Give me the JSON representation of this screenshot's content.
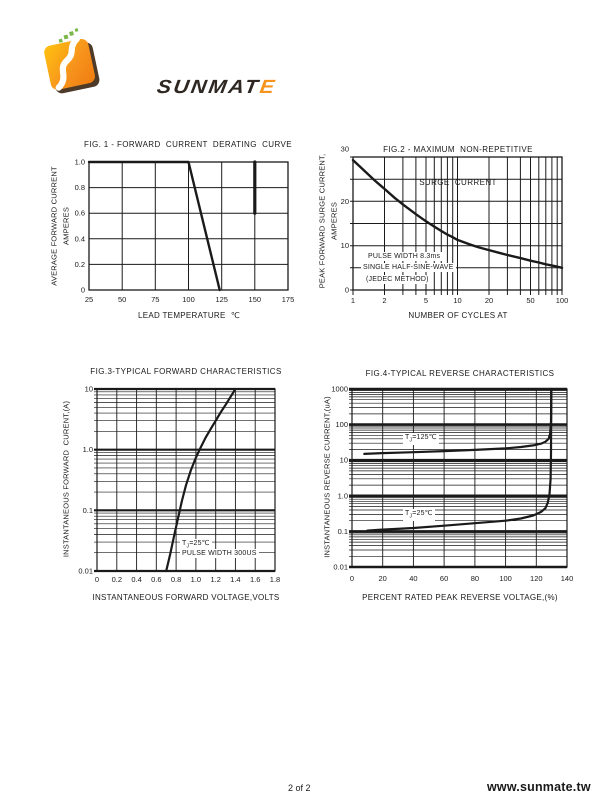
{
  "page": {
    "footer_page_label": "2 of 2",
    "footer_site": "www.sunmate.tw"
  },
  "logo": {
    "brand_main": "SUNMAT",
    "brand_accent": "E",
    "dark": "#2e2722",
    "orange": "#F7941D",
    "orange_light": "#FFC20E",
    "green": "#7AB648"
  },
  "chart_data": [
    {
      "id": "fig1",
      "type": "line",
      "title": "FIG. 1 - FORWARD  CURRENT  DERATING  CURVE",
      "xlabel": "LEAD TEMPERATURE  ℃",
      "ylabel_lines": [
        "AVERAGE FORWARD CURRENT",
        "AMPERES"
      ],
      "x_scale": "linear",
      "y_scale": "linear",
      "xlim": [
        25,
        175
      ],
      "ylim": [
        0,
        1.0
      ],
      "x_grid": [
        25,
        50,
        75,
        100,
        125,
        150,
        175
      ],
      "y_grid": [
        0,
        0.2,
        0.4,
        0.6,
        0.8,
        1.0
      ],
      "x_ticks": [
        {
          "v": 25,
          "label": "25"
        },
        {
          "v": 50,
          "label": "50"
        },
        {
          "v": 75,
          "label": "75"
        },
        {
          "v": 100,
          "label": "100"
        },
        {
          "v": 125,
          "label": "125"
        },
        {
          "v": 150,
          "label": "150"
        },
        {
          "v": 175,
          "label": "175"
        }
      ],
      "y_ticks": [
        {
          "v": 1.0,
          "label": "1.0"
        },
        {
          "v": 0.8,
          "label": "0.8"
        },
        {
          "v": 0.6,
          "label": "0.6"
        },
        {
          "v": 0.4,
          "label": "0.4"
        },
        {
          "v": 0.2,
          "label": "0.2"
        },
        {
          "v": 0,
          "label": "0"
        }
      ],
      "series": [
        {
          "name": "derating-curve",
          "points": [
            [
              25,
              1.0
            ],
            [
              100,
              1.0
            ],
            [
              123.5,
              0
            ]
          ]
        },
        {
          "name": "edge-artifact-line",
          "points": [
            [
              150,
              1.0
            ],
            [
              150,
              0.6
            ]
          ],
          "width": 3.2
        }
      ],
      "annotations": []
    },
    {
      "id": "fig2",
      "type": "line",
      "title_lines": [
        "FIG.2 - MAXIMUM  NON-REPETITIVE",
        "SURGE  CURRENT"
      ],
      "xlabel": "NUMBER OF CYCLES AT",
      "ylabel_lines": [
        "PEAK FORWARD SURGE CURRENT,",
        "AMPERES"
      ],
      "x_scale": "log",
      "y_scale": "linear",
      "xlim": [
        1,
        100
      ],
      "ylim": [
        0,
        30
      ],
      "x_grid": [
        1,
        2,
        5,
        10,
        20,
        50,
        100
      ],
      "y_grid": [
        0,
        5,
        10,
        15,
        20,
        25,
        30
      ],
      "x_ticks": [
        {
          "v": 1,
          "label": "1"
        },
        {
          "v": 2,
          "label": "2"
        },
        {
          "v": 5,
          "label": "5"
        },
        {
          "v": 10,
          "label": "10"
        },
        {
          "v": 20,
          "label": "20"
        },
        {
          "v": 50,
          "label": "50"
        },
        {
          "v": 100,
          "label": "100"
        }
      ],
      "y_ticks": [
        {
          "v": 30,
          "label": "30",
          "dy": -8
        },
        {
          "v": 20,
          "label": "20"
        },
        {
          "v": 10,
          "label": "10"
        },
        {
          "v": 0,
          "label": "0"
        }
      ],
      "series": [
        {
          "name": "surge-current-curve",
          "points": [
            [
              1,
              29.3
            ],
            [
              1.3,
              26.8
            ],
            [
              1.6,
              24.8
            ],
            [
              2,
              22.8
            ],
            [
              2.5,
              20.8
            ],
            [
              3,
              19.3
            ],
            [
              4,
              17.1
            ],
            [
              5,
              15.5
            ],
            [
              6,
              14.3
            ],
            [
              7,
              13.3
            ],
            [
              8,
              12.5
            ],
            [
              9,
              11.9
            ],
            [
              10,
              11.3
            ],
            [
              13,
              10.3
            ],
            [
              16,
              9.6
            ],
            [
              20,
              9.0
            ],
            [
              25,
              8.4
            ],
            [
              30,
              7.9
            ],
            [
              40,
              7.2
            ],
            [
              50,
              6.6
            ],
            [
              60,
              6.2
            ],
            [
              70,
              5.8
            ],
            [
              85,
              5.4
            ],
            [
              100,
              5.0
            ]
          ]
        }
      ],
      "annotations": [
        {
          "text": "PULSE WIDTH 8.3ms"
        },
        {
          "text": "SINGLE HALF-SINE-WAVE"
        },
        {
          "text": "(JEDEC METHOD)"
        }
      ]
    },
    {
      "id": "fig3",
      "type": "line",
      "title": "FIG.3-TYPICAL FORWARD CHARACTERISTICS",
      "xlabel": "INSTANTANEOUS FORWARD VOLTAGE,VOLTS",
      "ylabel_lines": [
        "INSTANTANEOUS FORWARD  CURENT,(A)"
      ],
      "x_scale": "linear",
      "y_scale": "log",
      "xlim": [
        0,
        1.8
      ],
      "ylim": [
        0.01,
        10
      ],
      "x_grid": [
        0,
        0.2,
        0.4,
        0.6,
        0.8,
        1.0,
        1.2,
        1.4,
        1.6,
        1.8
      ],
      "y_grid": [
        0.01,
        0.1,
        1.0,
        10
      ],
      "x_ticks": [
        {
          "v": 0,
          "label": "0"
        },
        {
          "v": 0.2,
          "label": "0.2"
        },
        {
          "v": 0.4,
          "label": "0.4"
        },
        {
          "v": 0.6,
          "label": "0.6"
        },
        {
          "v": 0.8,
          "label": "0.8"
        },
        {
          "v": 1.0,
          "label": "1.0"
        },
        {
          "v": 1.2,
          "label": "1.2"
        },
        {
          "v": 1.4,
          "label": "1.4"
        },
        {
          "v": 1.6,
          "label": "1.6"
        },
        {
          "v": 1.8,
          "label": "1.8"
        }
      ],
      "y_ticks": [
        {
          "v": 10,
          "label": "10"
        },
        {
          "v": 1.0,
          "label": "1.0"
        },
        {
          "v": 0.1,
          "label": "0.1"
        },
        {
          "v": 0.01,
          "label": "0.01"
        }
      ],
      "series": [
        {
          "name": "forward-vf-curve",
          "points": [
            [
              0.7,
              0.01
            ],
            [
              0.74,
              0.019
            ],
            [
              0.78,
              0.038
            ],
            [
              0.82,
              0.075
            ],
            [
              0.86,
              0.145
            ],
            [
              0.9,
              0.26
            ],
            [
              0.95,
              0.46
            ],
            [
              1.0,
              0.74
            ],
            [
              1.05,
              1.1
            ],
            [
              1.1,
              1.6
            ],
            [
              1.15,
              2.2
            ],
            [
              1.2,
              3.0
            ],
            [
              1.25,
              4.1
            ],
            [
              1.3,
              5.5
            ],
            [
              1.35,
              7.4
            ],
            [
              1.4,
              10
            ]
          ]
        }
      ],
      "annotations": [
        {
          "base": "T",
          "sub": "J",
          "rest": "=25℃"
        },
        {
          "text": "PULSE WIDTH 300US"
        }
      ]
    },
    {
      "id": "fig4",
      "type": "line",
      "title": "FIG.4-TYPICAL REVERSE CHARACTERISTICS",
      "xlabel": "PERCENT RATED PEAK REVERSE VOLTAGE,(%)",
      "ylabel_lines": [
        "INSTANTANEOUS REVERSE CURRENT,(uA)"
      ],
      "x_scale": "linear",
      "y_scale": "log",
      "xlim": [
        0,
        140
      ],
      "ylim": [
        0.01,
        1000
      ],
      "x_grid": [
        0,
        20,
        40,
        60,
        80,
        100,
        120,
        140
      ],
      "y_grid": [
        0.01,
        0.1,
        1.0,
        10,
        100,
        1000
      ],
      "x_ticks": [
        {
          "v": 0,
          "label": "0"
        },
        {
          "v": 20,
          "label": "20"
        },
        {
          "v": 40,
          "label": "40"
        },
        {
          "v": 60,
          "label": "60"
        },
        {
          "v": 80,
          "label": "80"
        },
        {
          "v": 100,
          "label": "100"
        },
        {
          "v": 120,
          "label": "120"
        },
        {
          "v": 140,
          "label": "140"
        }
      ],
      "y_ticks": [
        {
          "v": 1000,
          "label": "1000"
        },
        {
          "v": 100,
          "label": "100"
        },
        {
          "v": 10,
          "label": "10"
        },
        {
          "v": 1.0,
          "label": "1.0"
        },
        {
          "v": 0.1,
          "label": "0.1"
        },
        {
          "v": 0.01,
          "label": "0.01"
        }
      ],
      "series": [
        {
          "name": "tj-125c-curve",
          "points": [
            [
              8,
              15
            ],
            [
              20,
              15.8
            ],
            [
              40,
              16.8
            ],
            [
              60,
              18
            ],
            [
              80,
              19.5
            ],
            [
              100,
              21.5
            ],
            [
              110,
              23.5
            ],
            [
              118,
              26
            ],
            [
              123,
              29
            ],
            [
              126,
              33
            ],
            [
              128,
              40
            ],
            [
              129,
              55
            ],
            [
              129.6,
              120
            ],
            [
              129.8,
              1000
            ]
          ]
        },
        {
          "name": "tj-25c-curve",
          "points": [
            [
              10,
              0.105
            ],
            [
              20,
              0.112
            ],
            [
              40,
              0.125
            ],
            [
              60,
              0.145
            ],
            [
              80,
              0.17
            ],
            [
              100,
              0.2
            ],
            [
              110,
              0.23
            ],
            [
              118,
              0.28
            ],
            [
              123,
              0.35
            ],
            [
              126,
              0.45
            ],
            [
              127.5,
              0.65
            ],
            [
              128.6,
              1.1
            ],
            [
              129.3,
              3
            ],
            [
              129.6,
              15
            ],
            [
              129.8,
              1000
            ]
          ]
        }
      ],
      "annotations": [
        {
          "base": "T",
          "sub": "J",
          "rest": "=125℃"
        },
        {
          "base": "T",
          "sub": "J",
          "rest": "=25℃"
        }
      ]
    }
  ]
}
